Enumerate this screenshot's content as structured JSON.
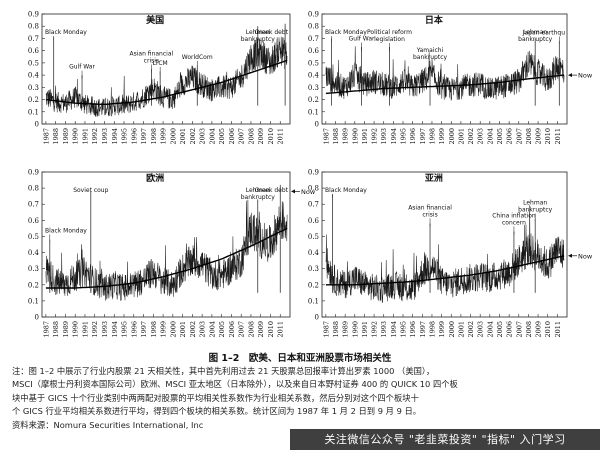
{
  "figure": {
    "caption": "图 1–2　欧美、日本和亚洲股票市场相关性",
    "notes": [
      "注：图 1–2 中展示了行业内股票 21 天相关性，其中首先利用过去 21 天股票总回报率计算出罗素 1000 （美国），",
      "MSCI（摩根士丹利资本国际公司）欧洲、MSCI 亚太地区（日本除外），以及来自日本野村证券 400 的 QUICK 10 四个板",
      "块中基于 GICS 十个行业类别中两两配对股票的平均相关性系数作为行业相关系数，然后分别对这个四个板块十",
      "个 GICS 行业平均相关系数进行平均，得到四个板块的相关系数。统计区间为 1987 年 1 月 2 日到 9 月 9 日。",
      "资料来源：Nomura Securities International, Inc"
    ],
    "watermark": "关注微信公众号 \"老韭菜投资\" \"指标\" 入门学习"
  },
  "chart_data": [
    {
      "type": "line",
      "title": "美国",
      "ylim": [
        0,
        0.9
      ],
      "yticks": [
        "0",
        "0.1",
        "0.2",
        "0.3",
        "0.4",
        "0.5",
        "0.6",
        "0.7",
        "0.8",
        "0.9"
      ],
      "xticks": [
        "1987",
        "1988",
        "1989",
        "1990",
        "1991",
        "1992",
        "1993",
        "1994",
        "1995",
        "1996",
        "1997",
        "1998",
        "1999",
        "2000",
        "2001",
        "2002",
        "2003",
        "2004",
        "2005",
        "2006",
        "2007",
        "2008",
        "2009",
        "2010",
        "2011"
      ],
      "series": [
        {
          "role": "correlation",
          "x": [
            1987,
            1988,
            1989,
            1990,
            1991,
            1992,
            1993,
            1994,
            1995,
            1996,
            1997,
            1998,
            1999,
            2000,
            2001,
            2002,
            2003,
            2004,
            2005,
            2006,
            2007,
            2008,
            2009,
            2010,
            2011,
            2011.7
          ],
          "values": [
            0.22,
            0.18,
            0.17,
            0.22,
            0.16,
            0.14,
            0.13,
            0.15,
            0.15,
            0.18,
            0.22,
            0.3,
            0.22,
            0.2,
            0.33,
            0.38,
            0.32,
            0.28,
            0.3,
            0.3,
            0.38,
            0.55,
            0.58,
            0.5,
            0.62,
            0.55
          ]
        },
        {
          "role": "trend",
          "x": [
            1987,
            1990,
            1993,
            1996,
            1999,
            2002,
            2005,
            2008,
            2011.7
          ],
          "values": [
            0.2,
            0.17,
            0.16,
            0.18,
            0.22,
            0.28,
            0.34,
            0.42,
            0.52
          ]
        }
      ],
      "annotations": [
        {
          "text": "Black Monday",
          "x": 1987.8,
          "y": 0.73
        },
        {
          "text": "Gulf War",
          "x": 1990.7,
          "y": 0.42
        },
        {
          "text": "Asian financial crisis",
          "x": 1997.8,
          "y": 0.47
        },
        {
          "text": "LTCM",
          "x": 1998.7,
          "y": 0.45
        },
        {
          "text": "WorldCom",
          "x": 2002.5,
          "y": 0.5
        },
        {
          "text": "Lehman bankruptcy",
          "x": 2008.7,
          "y": 0.82
        },
        {
          "text": "Greek debt",
          "x": 2011.5,
          "y": 0.84
        }
      ]
    },
    {
      "type": "line",
      "title": "日本",
      "ylim": [
        0,
        0.9
      ],
      "yticks": [
        "0",
        "0.1",
        "0.2",
        "0.3",
        "0.4",
        "0.5",
        "0.6",
        "0.7",
        "0.8",
        "0.9"
      ],
      "xticks": [
        "1987",
        "1988",
        "1989",
        "1990",
        "1991",
        "1992",
        "1993",
        "1994",
        "1995",
        "1996",
        "1997",
        "1998",
        "1999",
        "2000",
        "2001",
        "2002",
        "2003",
        "2004",
        "2005",
        "2006",
        "2007",
        "2008",
        "2009",
        "2010",
        "2011"
      ],
      "series": [
        {
          "role": "correlation",
          "x": [
            1987,
            1988,
            1989,
            1990,
            1991,
            1992,
            1993,
            1994,
            1995,
            1996,
            1997,
            1998,
            1999,
            2000,
            2001,
            2002,
            2003,
            2004,
            2005,
            2006,
            2007,
            2008,
            2009,
            2010,
            2011,
            2011.7
          ],
          "values": [
            0.4,
            0.33,
            0.3,
            0.4,
            0.32,
            0.35,
            0.32,
            0.3,
            0.35,
            0.3,
            0.35,
            0.4,
            0.3,
            0.28,
            0.3,
            0.32,
            0.33,
            0.28,
            0.3,
            0.32,
            0.35,
            0.5,
            0.42,
            0.35,
            0.48,
            0.42
          ]
        },
        {
          "role": "trend",
          "x": [
            1987,
            1990,
            1993,
            1996,
            1999,
            2002,
            2005,
            2008,
            2011.7
          ],
          "values": [
            0.25,
            0.27,
            0.29,
            0.3,
            0.31,
            0.32,
            0.34,
            0.37,
            0.4
          ]
        }
      ],
      "annotations": [
        {
          "text": "Black Monday",
          "x": 1987.6,
          "y": 0.72
        },
        {
          "text": "Gulf War",
          "x": 1990.7,
          "y": 0.65
        },
        {
          "text": "Political reform legislation",
          "x": 1993.6,
          "y": 0.65
        },
        {
          "text": "Yamaichi bankruptcy",
          "x": 1997.8,
          "y": 0.5
        },
        {
          "text": "Lehman bankruptcy",
          "x": 2008.7,
          "y": 0.72
        },
        {
          "text": "Japan earthqu",
          "x": 2011.2,
          "y": 0.7
        },
        {
          "text": "Now",
          "x": 2011.7,
          "y": 0.4
        }
      ]
    },
    {
      "type": "line",
      "title": "欧洲",
      "ylim": [
        0,
        0.9
      ],
      "yticks": [
        "0",
        "0.1",
        "0.2",
        "0.3",
        "0.4",
        "0.5",
        "0.6",
        "0.7",
        "0.8",
        "0.9"
      ],
      "xticks": [
        "1987",
        "1988",
        "1989",
        "1990",
        "1991",
        "1992",
        "1993",
        "1994",
        "1995",
        "1996",
        "1997",
        "1998",
        "1999",
        "2000",
        "2001",
        "2002",
        "2003",
        "2004",
        "2005",
        "2006",
        "2007",
        "2008",
        "2009",
        "2010",
        "2011"
      ],
      "series": [
        {
          "role": "correlation",
          "x": [
            1987,
            1988,
            1989,
            1990,
            1991,
            1992,
            1993,
            1994,
            1995,
            1996,
            1997,
            1998,
            1999,
            2000,
            2001,
            2002,
            2003,
            2004,
            2005,
            2006,
            2007,
            2008,
            2009,
            2010,
            2011,
            2011.7
          ],
          "values": [
            0.3,
            0.22,
            0.2,
            0.25,
            0.28,
            0.22,
            0.18,
            0.2,
            0.18,
            0.2,
            0.23,
            0.28,
            0.22,
            0.2,
            0.3,
            0.35,
            0.33,
            0.26,
            0.26,
            0.3,
            0.35,
            0.55,
            0.48,
            0.45,
            0.6,
            0.58
          ]
        },
        {
          "role": "trend",
          "x": [
            1987,
            1990,
            1993,
            1996,
            1999,
            2002,
            2005,
            2008,
            2011.7
          ],
          "values": [
            0.18,
            0.18,
            0.19,
            0.21,
            0.25,
            0.3,
            0.36,
            0.44,
            0.55
          ]
        }
      ],
      "annotations": [
        {
          "text": "Black Monday",
          "x": 1987.4,
          "y": 0.5
        },
        {
          "text": "Soviet coup",
          "x": 1991.6,
          "y": 0.8
        },
        {
          "text": "Lehman bankruptcy",
          "x": 2008.7,
          "y": 0.75
        },
        {
          "text": "Greek debt",
          "x": 2011,
          "y": 0.84
        },
        {
          "text": "Now",
          "x": 2011.7,
          "y": 0.78
        }
      ]
    },
    {
      "type": "line",
      "title": "亚洲",
      "ylim": [
        0,
        0.9
      ],
      "yticks": [
        "0",
        "0.1",
        "0.2",
        "0.3",
        "0.4",
        "0.5",
        "0.6",
        "0.7",
        "0.8",
        "0.9"
      ],
      "xticks": [
        "1987",
        "1988",
        "1989",
        "1990",
        "1991",
        "1992",
        "1993",
        "1994",
        "1995",
        "1996",
        "1997",
        "1998",
        "1999",
        "2000",
        "2001",
        "2002",
        "2003",
        "2004",
        "2005",
        "2006",
        "2007",
        "2008",
        "2009",
        "2010",
        "2011"
      ],
      "series": [
        {
          "role": "correlation",
          "x": [
            1987,
            1988,
            1989,
            1990,
            1991,
            1992,
            1993,
            1994,
            1995,
            1996,
            1997,
            1998,
            1999,
            2000,
            2001,
            2002,
            2003,
            2004,
            2005,
            2006,
            2007,
            2008,
            2009,
            2010,
            2011,
            2011.7
          ],
          "values": [
            0.35,
            0.22,
            0.2,
            0.24,
            0.2,
            0.18,
            0.17,
            0.2,
            0.18,
            0.17,
            0.28,
            0.32,
            0.22,
            0.2,
            0.23,
            0.24,
            0.25,
            0.24,
            0.26,
            0.28,
            0.35,
            0.42,
            0.38,
            0.32,
            0.42,
            0.38
          ]
        },
        {
          "role": "trend",
          "x": [
            1987,
            1990,
            1993,
            1996,
            1999,
            2002,
            2005,
            2008,
            2011.7
          ],
          "values": [
            0.2,
            0.2,
            0.21,
            0.22,
            0.24,
            0.26,
            0.29,
            0.33,
            0.38
          ]
        }
      ],
      "annotations": [
        {
          "text": "Black Monday",
          "x": 1987.7,
          "y": 0.78
        },
        {
          "text": "Asian financial crisis",
          "x": 1997.8,
          "y": 0.6
        },
        {
          "text": "China inflation concern",
          "x": 2006.5,
          "y": 0.55
        },
        {
          "text": "Lehman bankruptcy",
          "x": 2008.7,
          "y": 0.63
        },
        {
          "text": "Now",
          "x": 2011.7,
          "y": 0.38
        }
      ]
    }
  ]
}
